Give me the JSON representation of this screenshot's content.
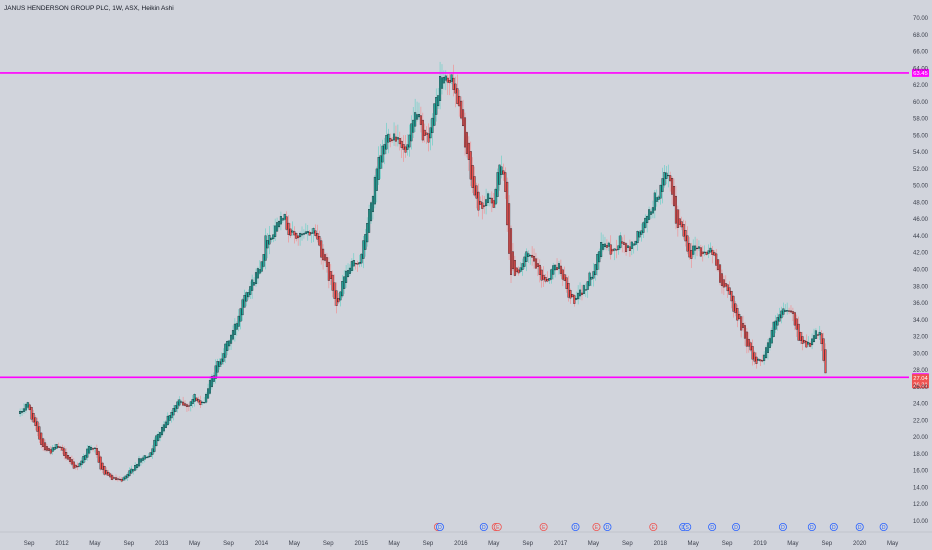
{
  "chart_data": {
    "type": "candlestick",
    "title": "JANUS HENDERSON GROUP PLC, 1W, ASX, Heikin Ashi",
    "y_axis": {
      "min": 9,
      "max": 71,
      "ticks": [
        10,
        12,
        14,
        16,
        18,
        20,
        22,
        24,
        26,
        28,
        30,
        32,
        34,
        36,
        38,
        40,
        42,
        44,
        46,
        48,
        50,
        52,
        54,
        56,
        58,
        60,
        62,
        64,
        66,
        68,
        70
      ],
      "tick_labels": [
        "10.00",
        "12.00",
        "14.00",
        "16.00",
        "18.00",
        "20.00",
        "22.00",
        "24.00",
        "26.00",
        "28.00",
        "30.00",
        "32.00",
        "34.00",
        "36.00",
        "38.00",
        "40.00",
        "42.00",
        "44.00",
        "46.00",
        "48.00",
        "50.00",
        "52.00",
        "54.00",
        "56.00",
        "58.00",
        "60.00",
        "62.00",
        "64.00",
        "66.00",
        "68.00",
        "70.00"
      ]
    },
    "x_axis": {
      "start": 2011.58,
      "end": 2020.42,
      "ticks": [
        {
          "t": 2011.67,
          "label": "Sep"
        },
        {
          "t": 2012.0,
          "label": "2012"
        },
        {
          "t": 2012.33,
          "label": "May"
        },
        {
          "t": 2012.67,
          "label": "Sep"
        },
        {
          "t": 2013.0,
          "label": "2013"
        },
        {
          "t": 2013.33,
          "label": "May"
        },
        {
          "t": 2013.67,
          "label": "Sep"
        },
        {
          "t": 2014.0,
          "label": "2014"
        },
        {
          "t": 2014.33,
          "label": "May"
        },
        {
          "t": 2014.67,
          "label": "Sep"
        },
        {
          "t": 2015.0,
          "label": "2015"
        },
        {
          "t": 2015.33,
          "label": "May"
        },
        {
          "t": 2015.67,
          "label": "Sep"
        },
        {
          "t": 2016.0,
          "label": "2016"
        },
        {
          "t": 2016.33,
          "label": "May"
        },
        {
          "t": 2016.67,
          "label": "Sep"
        },
        {
          "t": 2017.0,
          "label": "2017"
        },
        {
          "t": 2017.33,
          "label": "May"
        },
        {
          "t": 2017.67,
          "label": "Sep"
        },
        {
          "t": 2018.0,
          "label": "2018"
        },
        {
          "t": 2018.33,
          "label": "May"
        },
        {
          "t": 2018.67,
          "label": "Sep"
        },
        {
          "t": 2019.0,
          "label": "2019"
        },
        {
          "t": 2019.33,
          "label": "May"
        },
        {
          "t": 2019.67,
          "label": "Sep"
        },
        {
          "t": 2020.0,
          "label": "2020"
        },
        {
          "t": 2020.33,
          "label": "May"
        }
      ]
    },
    "horizontal_lines": [
      {
        "value": 63.45,
        "label": "63.45",
        "color": "#ff00ff"
      },
      {
        "value": 27.14,
        "label": "27.14",
        "color": "#ff00ff"
      }
    ],
    "price_badges": [
      {
        "value": 27.04,
        "label": "27.04",
        "color": "#ef5350"
      },
      {
        "value": 26.31,
        "label": "26.31",
        "color": "#ef5350"
      }
    ],
    "trend_points": [
      {
        "t": 2011.58,
        "v": 22.8
      },
      {
        "t": 2011.65,
        "v": 24.2
      },
      {
        "t": 2011.72,
        "v": 21.5
      },
      {
        "t": 2011.8,
        "v": 19.0
      },
      {
        "t": 2011.88,
        "v": 18.2
      },
      {
        "t": 2011.95,
        "v": 19.0
      },
      {
        "t": 2012.05,
        "v": 17.6
      },
      {
        "t": 2012.12,
        "v": 16.1
      },
      {
        "t": 2012.2,
        "v": 17.3
      },
      {
        "t": 2012.28,
        "v": 19.1
      },
      {
        "t": 2012.33,
        "v": 18.6
      },
      {
        "t": 2012.38,
        "v": 16.4
      },
      {
        "t": 2012.45,
        "v": 15.3
      },
      {
        "t": 2012.52,
        "v": 15.0
      },
      {
        "t": 2012.6,
        "v": 14.7
      },
      {
        "t": 2012.7,
        "v": 16.2
      },
      {
        "t": 2012.78,
        "v": 17.3
      },
      {
        "t": 2012.88,
        "v": 18.0
      },
      {
        "t": 2012.95,
        "v": 20.2
      },
      {
        "t": 2013.08,
        "v": 22.8
      },
      {
        "t": 2013.17,
        "v": 24.3
      },
      {
        "t": 2013.25,
        "v": 23.6
      },
      {
        "t": 2013.33,
        "v": 24.9
      },
      {
        "t": 2013.4,
        "v": 23.6
      },
      {
        "t": 2013.48,
        "v": 26.4
      },
      {
        "t": 2013.56,
        "v": 28.8
      },
      {
        "t": 2013.65,
        "v": 31.0
      },
      {
        "t": 2013.75,
        "v": 33.6
      },
      {
        "t": 2013.83,
        "v": 37.4
      },
      {
        "t": 2013.9,
        "v": 38.2
      },
      {
        "t": 2014.0,
        "v": 41.0
      },
      {
        "t": 2014.05,
        "v": 44.0
      },
      {
        "t": 2014.12,
        "v": 44.4
      },
      {
        "t": 2014.2,
        "v": 47.2
      },
      {
        "t": 2014.28,
        "v": 44.3
      },
      {
        "t": 2014.36,
        "v": 43.8
      },
      {
        "t": 2014.45,
        "v": 44.1
      },
      {
        "t": 2014.53,
        "v": 44.8
      },
      {
        "t": 2014.6,
        "v": 42.0
      },
      {
        "t": 2014.68,
        "v": 39.0
      },
      {
        "t": 2014.76,
        "v": 35.9
      },
      {
        "t": 2014.84,
        "v": 39.5
      },
      {
        "t": 2014.92,
        "v": 40.6
      },
      {
        "t": 2015.0,
        "v": 41.3
      },
      {
        "t": 2015.05,
        "v": 45.0
      },
      {
        "t": 2015.1,
        "v": 48.0
      },
      {
        "t": 2015.17,
        "v": 52.4
      },
      {
        "t": 2015.25,
        "v": 55.8
      },
      {
        "t": 2015.32,
        "v": 56.2
      },
      {
        "t": 2015.39,
        "v": 55.6
      },
      {
        "t": 2015.44,
        "v": 53.5
      },
      {
        "t": 2015.5,
        "v": 56.4
      },
      {
        "t": 2015.56,
        "v": 59.2
      },
      {
        "t": 2015.62,
        "v": 55.0
      },
      {
        "t": 2015.68,
        "v": 56.0
      },
      {
        "t": 2015.74,
        "v": 59.4
      },
      {
        "t": 2015.8,
        "v": 63.2
      },
      {
        "t": 2015.86,
        "v": 62.4
      },
      {
        "t": 2015.92,
        "v": 62.6
      },
      {
        "t": 2015.98,
        "v": 59.3
      },
      {
        "t": 2016.04,
        "v": 55.4
      },
      {
        "t": 2016.1,
        "v": 50.8
      },
      {
        "t": 2016.15,
        "v": 48.2
      },
      {
        "t": 2016.2,
        "v": 47.2
      },
      {
        "t": 2016.26,
        "v": 48.4
      },
      {
        "t": 2016.33,
        "v": 48.0
      },
      {
        "t": 2016.38,
        "v": 52.8
      },
      {
        "t": 2016.44,
        "v": 50.2
      },
      {
        "t": 2016.5,
        "v": 39.4
      },
      {
        "t": 2016.58,
        "v": 40.0
      },
      {
        "t": 2016.65,
        "v": 41.6
      },
      {
        "t": 2016.72,
        "v": 41.2
      },
      {
        "t": 2016.8,
        "v": 39.0
      },
      {
        "t": 2016.87,
        "v": 38.8
      },
      {
        "t": 2016.94,
        "v": 40.6
      },
      {
        "t": 2017.0,
        "v": 40.2
      },
      {
        "t": 2017.08,
        "v": 36.6
      },
      {
        "t": 2017.15,
        "v": 36.3
      },
      {
        "t": 2017.22,
        "v": 37.4
      },
      {
        "t": 2017.3,
        "v": 39.2
      },
      {
        "t": 2017.38,
        "v": 42.2
      },
      {
        "t": 2017.44,
        "v": 43.3
      },
      {
        "t": 2017.52,
        "v": 42.0
      },
      {
        "t": 2017.6,
        "v": 43.6
      },
      {
        "t": 2017.67,
        "v": 42.2
      },
      {
        "t": 2017.74,
        "v": 43.4
      },
      {
        "t": 2017.81,
        "v": 44.8
      },
      {
        "t": 2017.88,
        "v": 46.4
      },
      {
        "t": 2017.94,
        "v": 48.4
      },
      {
        "t": 2018.0,
        "v": 49.6
      },
      {
        "t": 2018.05,
        "v": 51.2
      },
      {
        "t": 2018.1,
        "v": 50.4
      },
      {
        "t": 2018.15,
        "v": 45.8
      },
      {
        "t": 2018.22,
        "v": 44.8
      },
      {
        "t": 2018.3,
        "v": 41.6
      },
      {
        "t": 2018.36,
        "v": 43.2
      },
      {
        "t": 2018.42,
        "v": 41.6
      },
      {
        "t": 2018.5,
        "v": 42.6
      },
      {
        "t": 2018.56,
        "v": 40.6
      },
      {
        "t": 2018.62,
        "v": 38.2
      },
      {
        "t": 2018.7,
        "v": 36.8
      },
      {
        "t": 2018.76,
        "v": 34.4
      },
      {
        "t": 2018.82,
        "v": 33.0
      },
      {
        "t": 2018.9,
        "v": 30.2
      },
      {
        "t": 2018.96,
        "v": 28.8
      },
      {
        "t": 2019.02,
        "v": 29.4
      },
      {
        "t": 2019.08,
        "v": 31.2
      },
      {
        "t": 2019.14,
        "v": 33.4
      },
      {
        "t": 2019.2,
        "v": 34.6
      },
      {
        "t": 2019.27,
        "v": 35.2
      },
      {
        "t": 2019.33,
        "v": 34.5
      },
      {
        "t": 2019.38,
        "v": 32.0
      },
      {
        "t": 2019.44,
        "v": 31.2
      },
      {
        "t": 2019.5,
        "v": 31.0
      },
      {
        "t": 2019.56,
        "v": 32.4
      },
      {
        "t": 2019.61,
        "v": 32.0
      },
      {
        "t": 2019.65,
        "v": 27.4
      }
    ],
    "events": [
      {
        "t": 2015.77,
        "label": "E",
        "kind": "earnings"
      },
      {
        "t": 2015.79,
        "label": "D",
        "kind": "dividend"
      },
      {
        "t": 2016.23,
        "label": "D",
        "kind": "dividend"
      },
      {
        "t": 2016.35,
        "label": "E",
        "kind": "earnings"
      },
      {
        "t": 2016.37,
        "label": "E",
        "kind": "earnings"
      },
      {
        "t": 2016.83,
        "label": "E",
        "kind": "earnings"
      },
      {
        "t": 2017.15,
        "label": "D",
        "kind": "dividend"
      },
      {
        "t": 2017.36,
        "label": "E",
        "kind": "earnings"
      },
      {
        "t": 2017.47,
        "label": "D",
        "kind": "dividend"
      },
      {
        "t": 2017.93,
        "label": "E",
        "kind": "earnings"
      },
      {
        "t": 2018.23,
        "label": "D",
        "kind": "dividend"
      },
      {
        "t": 2018.27,
        "label": "S",
        "kind": "split"
      },
      {
        "t": 2018.52,
        "label": "D",
        "kind": "dividend"
      },
      {
        "t": 2018.76,
        "label": "D",
        "kind": "dividend"
      },
      {
        "t": 2019.23,
        "label": "D",
        "kind": "dividend"
      },
      {
        "t": 2019.52,
        "label": "D",
        "kind": "dividend"
      },
      {
        "t": 2019.74,
        "label": "D",
        "kind": "dividend"
      },
      {
        "t": 2020.0,
        "label": "D",
        "kind": "dividend"
      },
      {
        "t": 2020.24,
        "label": "D",
        "kind": "dividend"
      },
      {
        "t": 2020.48,
        "label": "D",
        "kind": "dividend"
      }
    ],
    "colors": {
      "background": "#d1d4dc",
      "up_candle": "#26a69a",
      "down_candle": "#ef5350",
      "up_wick": "#5fcfc4",
      "down_wick": "#f4888a",
      "candle_outline": "#131722",
      "level_line": "#ff00ff",
      "event_earnings": "#ef5350",
      "event_dividend": "#2962ff",
      "text": "#131722"
    },
    "legend": "none",
    "grid": false
  }
}
